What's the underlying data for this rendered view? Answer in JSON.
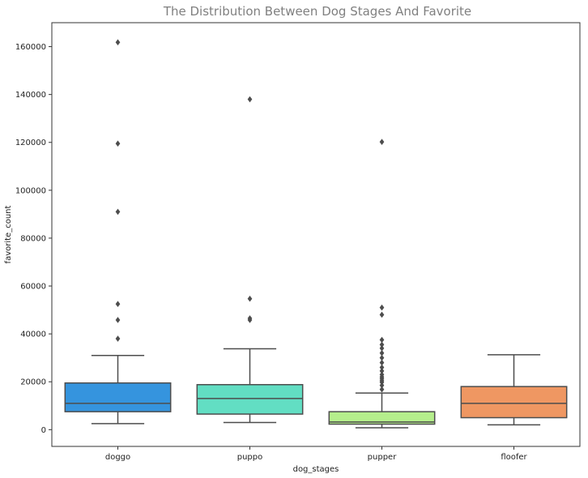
{
  "chart_data": {
    "type": "box",
    "title": "The Distribution Between Dog Stages And Favorite",
    "xlabel": "dog_stages",
    "ylabel": "favorite_count",
    "ylim": [
      -7000,
      170000
    ],
    "yticks": [
      0,
      20000,
      40000,
      60000,
      80000,
      100000,
      120000,
      140000,
      160000
    ],
    "grid": false,
    "categories": [
      "doggo",
      "puppo",
      "pupper",
      "floofer"
    ],
    "series": [
      {
        "category": "doggo",
        "color": "#3594de",
        "whisker_low": 2500,
        "q1": 7500,
        "median": 11000,
        "q3": 19500,
        "whisker_high": 31000,
        "outliers": [
          38000,
          45800,
          52500,
          91000,
          119500,
          161800
        ]
      },
      {
        "category": "puppo",
        "color": "#62dec3",
        "whisker_low": 3000,
        "q1": 6500,
        "median": 13000,
        "q3": 18800,
        "whisker_high": 33800,
        "outliers": [
          45800,
          46500,
          54700,
          138000
        ]
      },
      {
        "category": "pupper",
        "color": "#b5ee8c",
        "whisker_low": 800,
        "q1": 2300,
        "median": 3200,
        "q3": 7500,
        "whisker_high": 15300,
        "outliers": [
          16800,
          18500,
          19800,
          20500,
          21300,
          22000,
          23000,
          24500,
          26000,
          28000,
          30000,
          32000,
          34000,
          35500,
          37500,
          48000,
          51000,
          120200
        ]
      },
      {
        "category": "floofer",
        "color": "#ef9762",
        "whisker_low": 2000,
        "q1": 5000,
        "median": 11000,
        "q3": 18000,
        "whisker_high": 31300,
        "outliers": []
      }
    ]
  }
}
